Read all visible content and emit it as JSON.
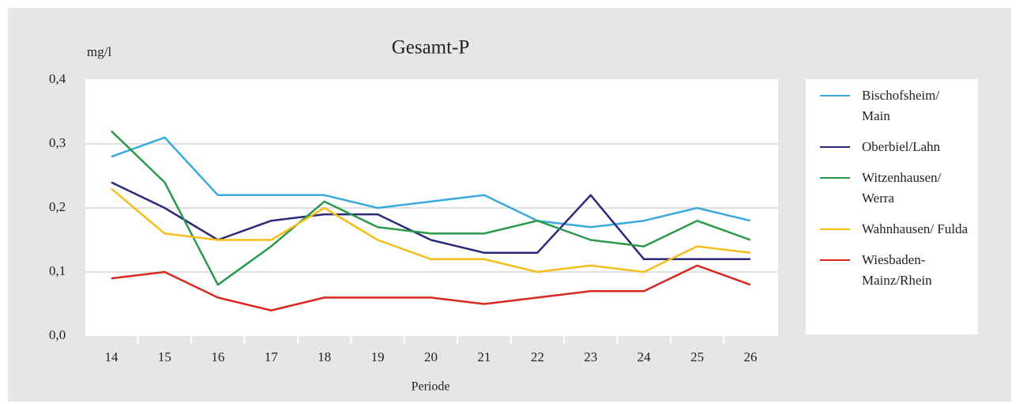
{
  "chart_data": {
    "type": "line",
    "title": "Gesamt-P",
    "y_label": "mg/l",
    "x_label": "Periode",
    "categories": [
      "14",
      "15",
      "16",
      "17",
      "18",
      "19",
      "20",
      "21",
      "22",
      "23",
      "24",
      "25",
      "26"
    ],
    "ylim": [
      0,
      0.4
    ],
    "yticks": [
      {
        "value": 0,
        "label": "0,0"
      },
      {
        "value": 0.1,
        "label": "0,1"
      },
      {
        "value": 0.2,
        "label": "0,2"
      },
      {
        "value": 0.3,
        "label": "0,3"
      },
      {
        "value": 0.4,
        "label": "0,4"
      }
    ],
    "grid": true,
    "legend": "right",
    "series": [
      {
        "name": "Bischofsheim/ Main",
        "color": "#3aa9dc",
        "values": [
          0.28,
          0.31,
          0.22,
          0.22,
          0.22,
          0.2,
          0.21,
          0.22,
          0.18,
          0.17,
          0.18,
          0.2,
          0.18
        ]
      },
      {
        "name": "Oberbiel/Lahn",
        "color": "#2b2a7a",
        "values": [
          0.24,
          0.2,
          0.15,
          0.18,
          0.19,
          0.19,
          0.15,
          0.13,
          0.13,
          0.22,
          0.12,
          0.12,
          0.12
        ]
      },
      {
        "name": "Witzenhausen/ Werra",
        "color": "#2a9a4a",
        "values": [
          0.32,
          0.24,
          0.08,
          0.14,
          0.21,
          0.17,
          0.16,
          0.16,
          0.18,
          0.15,
          0.14,
          0.18,
          0.15
        ]
      },
      {
        "name": "Wahnhausen/ Fulda",
        "color": "#f5bd1a",
        "values": [
          0.23,
          0.16,
          0.15,
          0.15,
          0.2,
          0.15,
          0.12,
          0.12,
          0.1,
          0.11,
          0.1,
          0.14,
          0.13
        ]
      },
      {
        "name": "Wiesbaden-Mainz/Rhein",
        "color": "#d8281e",
        "values": [
          0.09,
          0.1,
          0.06,
          0.04,
          0.06,
          0.06,
          0.06,
          0.05,
          0.06,
          0.07,
          0.07,
          0.11,
          0.08
        ]
      }
    ]
  }
}
